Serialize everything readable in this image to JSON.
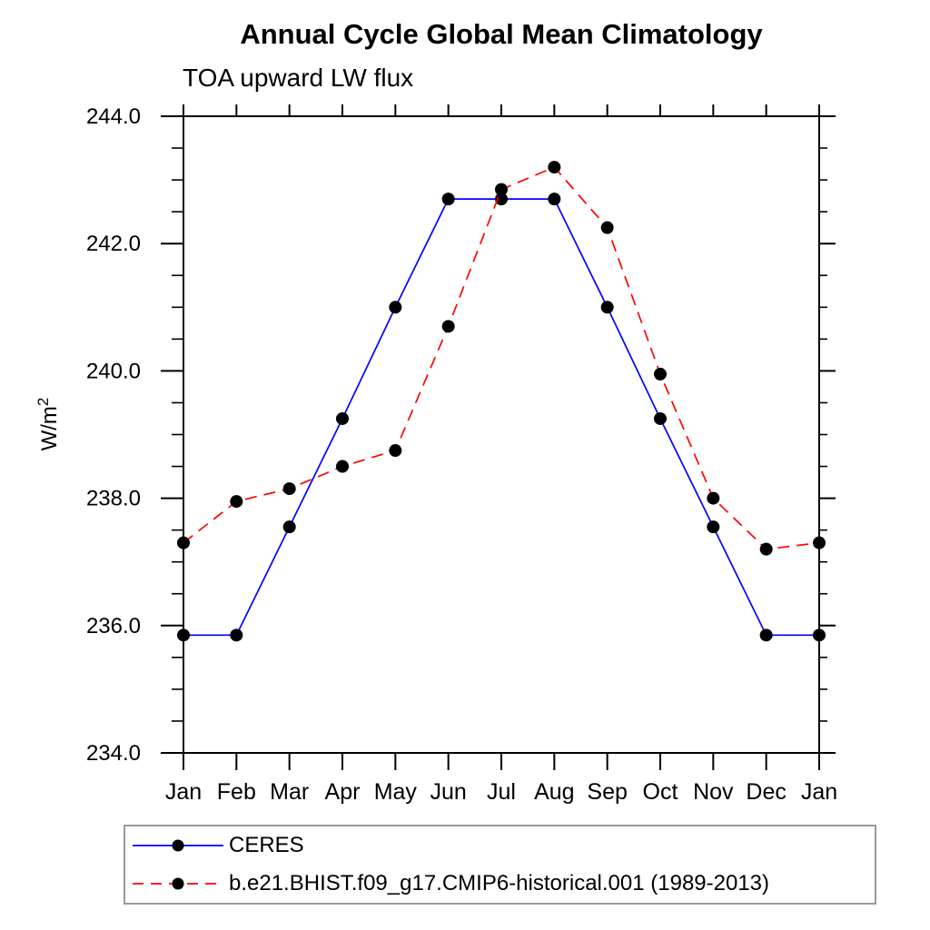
{
  "chart_data": {
    "type": "line",
    "title": "Annual Cycle Global Mean Climatology",
    "subtitle": "TOA upward LW flux",
    "ylabel": "W/m²",
    "xlabel": "",
    "x_categories": [
      "Jan",
      "Feb",
      "Mar",
      "Apr",
      "May",
      "Jun",
      "Jul",
      "Aug",
      "Sep",
      "Oct",
      "Nov",
      "Dec",
      "Jan"
    ],
    "ylim": [
      234.0,
      244.0
    ],
    "ytick_major": [
      244.0,
      242.0,
      240.0,
      238.0,
      236.0,
      234.0
    ],
    "ytick_labels": [
      "244.0",
      "242.0",
      "240.0",
      "238.0",
      "236.0",
      "234.0"
    ],
    "ytick_minor_step": 0.5,
    "grid": false,
    "frame_color": "#000000",
    "legend_position": "bottom-left",
    "series": [
      {
        "name": "CERES",
        "line_color": "#0000ff",
        "line_style": "solid",
        "marker": "circle",
        "marker_color": "#000000",
        "values": [
          235.85,
          235.85,
          237.55,
          239.25,
          241.0,
          242.7,
          242.7,
          242.7,
          241.0,
          239.25,
          237.55,
          235.85,
          235.85
        ]
      },
      {
        "name": "b.e21.BHIST.f09_g17.CMIP6-historical.001 (1989-2013)",
        "line_color": "#ff0000",
        "line_style": "dashed",
        "marker": "circle",
        "marker_color": "#000000",
        "values": [
          237.3,
          237.95,
          238.15,
          238.5,
          238.75,
          240.7,
          242.85,
          243.2,
          242.25,
          239.95,
          238.0,
          237.2,
          237.3
        ]
      }
    ]
  }
}
